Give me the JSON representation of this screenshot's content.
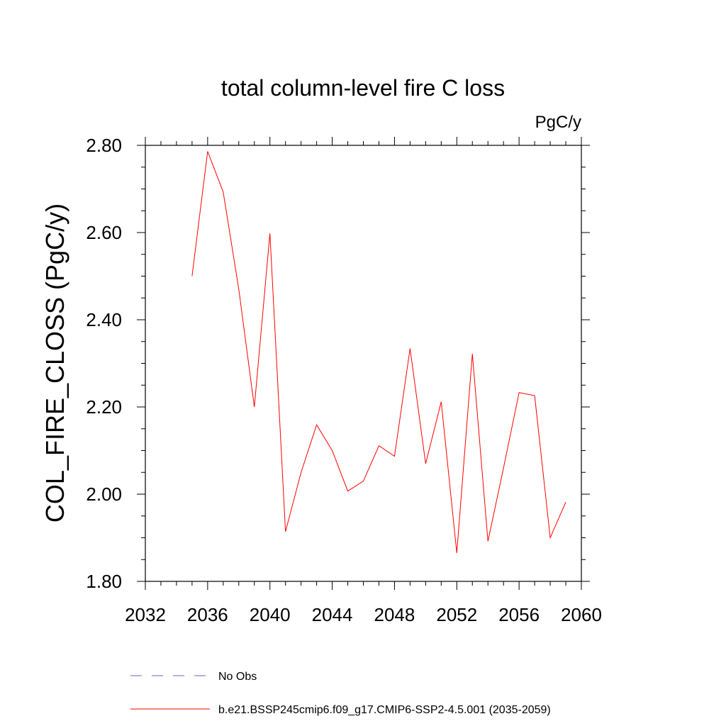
{
  "chart_data": {
    "type": "line",
    "title": "total column-level fire C loss",
    "units_label": "PgC/y",
    "ylabel": "COL_FIRE_CLOSS  (PgC/y)",
    "xlabel": "",
    "xlim": [
      2032,
      2060
    ],
    "ylim": [
      1.8,
      2.8
    ],
    "x_ticks": [
      2032,
      2036,
      2040,
      2044,
      2048,
      2052,
      2056,
      2060
    ],
    "y_ticks": [
      1.8,
      2.0,
      2.2,
      2.4,
      2.6,
      2.8
    ],
    "y_tick_labels": [
      "1.80",
      "2.00",
      "2.20",
      "2.40",
      "2.60",
      "2.80"
    ],
    "x_minor_step": 1,
    "y_minor_step": 0.05,
    "grid": false,
    "series": [
      {
        "name": "b.e21.BSSP245cmip6.f09_g17.CMIP6-SSP2-4.5.001 (2035-2059)",
        "color": "#ff0000",
        "x": [
          2035,
          2036,
          2037,
          2038,
          2039,
          2040,
          2041,
          2042,
          2043,
          2044,
          2045,
          2046,
          2047,
          2048,
          2049,
          2050,
          2051,
          2052,
          2053,
          2054,
          2055,
          2056,
          2057,
          2058,
          2059
        ],
        "y": [
          2.5,
          2.786,
          2.693,
          2.47,
          2.2,
          2.598,
          1.914,
          2.05,
          2.159,
          2.1,
          2.007,
          2.03,
          2.111,
          2.087,
          2.334,
          2.07,
          2.212,
          1.865,
          2.322,
          1.892,
          2.06,
          2.233,
          2.226,
          1.9,
          1.982
        ]
      }
    ],
    "legend": {
      "placement": "bottom",
      "entries": [
        {
          "label": "No Obs",
          "color": "#6666cc",
          "style": "dashed"
        },
        {
          "label": "b.e21.BSSP245cmip6.f09_g17.CMIP6-SSP2-4.5.001 (2035-2059)",
          "color": "#ff0000",
          "style": "solid"
        }
      ]
    }
  }
}
